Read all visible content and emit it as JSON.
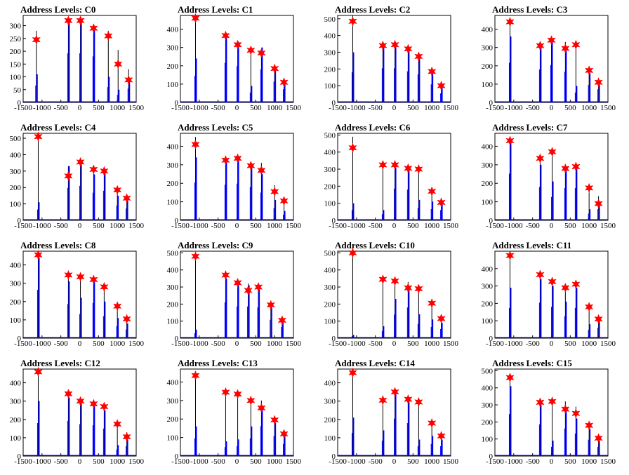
{
  "figure": {
    "colors": {
      "histogram": "#0000ff",
      "black_line": "#000000",
      "marker": "#ff0000",
      "frame": "#000000",
      "background": "#ffffff"
    },
    "shared_xlim": [
      -1500,
      1500
    ],
    "shared_x_ticks": [
      "-1500",
      "-1000",
      "-500",
      "0",
      "500",
      "1000",
      "1500"
    ]
  },
  "chart_data": [
    {
      "type": "bar",
      "title": "Address Levels: C0",
      "xlim": [
        -1500,
        1500
      ],
      "ylim": [
        0,
        340
      ],
      "y_ticks": [
        0,
        50,
        100,
        150,
        200,
        250,
        300
      ],
      "peaks_x": [
        -1150,
        -300,
        20,
        370,
        760,
        1020,
        1300
      ],
      "markers": [
        245,
        320,
        320,
        290,
        260,
        150,
        88
      ],
      "bar_heights": [
        110,
        320,
        320,
        300,
        100,
        50,
        90
      ],
      "line_heights": [
        280,
        330,
        330,
        300,
        280,
        205,
        130
      ]
    },
    {
      "type": "bar",
      "title": "Address Levels: C1",
      "xlim": [
        -1500,
        1500
      ],
      "ylim": [
        0,
        475
      ],
      "y_ticks": [
        0,
        100,
        200,
        300,
        400
      ],
      "peaks_x": [
        -1100,
        -300,
        20,
        370,
        650,
        1000,
        1250
      ],
      "markers": [
        460,
        365,
        315,
        285,
        270,
        185,
        110
      ],
      "bar_heights": [
        240,
        360,
        330,
        90,
        300,
        190,
        120
      ],
      "line_heights": [
        460,
        350,
        300,
        300,
        260,
        180,
        110
      ]
    },
    {
      "type": "bar",
      "title": "Address Levels: C2",
      "xlim": [
        -1500,
        1500
      ],
      "ylim": [
        0,
        520
      ],
      "y_ticks": [
        0,
        100,
        200,
        300,
        400,
        500
      ],
      "peaks_x": [
        -1100,
        -300,
        20,
        370,
        650,
        1000,
        1250
      ],
      "markers": [
        485,
        340,
        345,
        320,
        275,
        185,
        100
      ],
      "bar_heights": [
        300,
        340,
        340,
        310,
        280,
        180,
        90
      ],
      "line_heights": [
        520,
        330,
        350,
        320,
        270,
        180,
        120
      ]
    },
    {
      "type": "bar",
      "title": "Address Levels: C3",
      "xlim": [
        -1500,
        1500
      ],
      "ylim": [
        0,
        475
      ],
      "y_ticks": [
        0,
        100,
        200,
        300,
        400
      ],
      "peaks_x": [
        -1100,
        -300,
        0,
        370,
        650,
        1000,
        1250
      ],
      "markers": [
        440,
        310,
        340,
        295,
        315,
        175,
        110
      ],
      "bar_heights": [
        360,
        300,
        340,
        280,
        90,
        160,
        120
      ],
      "line_heights": [
        440,
        310,
        340,
        330,
        320,
        170,
        120
      ]
    },
    {
      "type": "bar",
      "title": "Address Levels: C4",
      "xlim": [
        -1500,
        1500
      ],
      "ylim": [
        0,
        530
      ],
      "y_ticks": [
        0,
        100,
        200,
        300,
        400,
        500
      ],
      "peaks_x": [
        -1100,
        -300,
        20,
        370,
        650,
        1000,
        1250
      ],
      "markers": [
        510,
        270,
        355,
        310,
        300,
        185,
        135
      ],
      "bar_heights": [
        110,
        330,
        350,
        280,
        300,
        150,
        120
      ],
      "line_heights": [
        520,
        330,
        360,
        300,
        300,
        200,
        140
      ]
    },
    {
      "type": "bar",
      "title": "Address Levels: C5",
      "xlim": [
        -1500,
        1500
      ],
      "ylim": [
        0,
        470
      ],
      "y_ticks": [
        0,
        100,
        200,
        300,
        400
      ],
      "peaks_x": [
        -1100,
        -300,
        20,
        370,
        650,
        1000,
        1250
      ],
      "markers": [
        410,
        325,
        335,
        295,
        270,
        155,
        105
      ],
      "bar_heights": [
        340,
        320,
        330,
        300,
        250,
        110,
        50
      ],
      "line_heights": [
        450,
        330,
        340,
        300,
        310,
        190,
        110
      ]
    },
    {
      "type": "bar",
      "title": "Address Levels: C6",
      "xlim": [
        -1500,
        1500
      ],
      "ylim": [
        0,
        510
      ],
      "y_ticks": [
        0,
        100,
        200,
        300,
        400,
        500
      ],
      "peaks_x": [
        -1100,
        -300,
        20,
        370,
        650,
        1000,
        1250
      ],
      "markers": [
        425,
        325,
        325,
        305,
        300,
        170,
        105
      ],
      "bar_heights": [
        100,
        60,
        310,
        300,
        120,
        110,
        100
      ],
      "line_heights": [
        490,
        320,
        320,
        300,
        300,
        170,
        120
      ]
    },
    {
      "type": "bar",
      "title": "Address Levels: C7",
      "xlim": [
        -1500,
        1500
      ],
      "ylim": [
        0,
        470
      ],
      "y_ticks": [
        0,
        100,
        200,
        300,
        400
      ],
      "peaks_x": [
        -1100,
        -300,
        20,
        370,
        650,
        1000,
        1250
      ],
      "markers": [
        430,
        335,
        370,
        280,
        290,
        175,
        90
      ],
      "bar_heights": [
        420,
        300,
        210,
        290,
        290,
        60,
        100
      ],
      "line_heights": [
        440,
        350,
        380,
        300,
        300,
        150,
        130
      ]
    },
    {
      "type": "bar",
      "title": "Address Levels: C8",
      "xlim": [
        -1500,
        1500
      ],
      "ylim": [
        0,
        475
      ],
      "y_ticks": [
        0,
        100,
        200,
        300,
        400
      ],
      "peaks_x": [
        -1100,
        -300,
        20,
        370,
        650,
        1000,
        1250
      ],
      "markers": [
        455,
        345,
        335,
        320,
        280,
        175,
        105
      ],
      "bar_heights": [
        440,
        310,
        220,
        320,
        200,
        110,
        80
      ],
      "line_heights": [
        460,
        350,
        330,
        320,
        290,
        170,
        110
      ]
    },
    {
      "type": "bar",
      "title": "Address Levels: C9",
      "xlim": [
        -1500,
        1500
      ],
      "ylim": [
        0,
        510
      ],
      "y_ticks": [
        0,
        100,
        200,
        300,
        400,
        500
      ],
      "peaks_x": [
        -1100,
        -300,
        20,
        300,
        570,
        900,
        1200
      ],
      "markers": [
        480,
        370,
        325,
        280,
        300,
        195,
        105
      ],
      "bar_heights": [
        50,
        350,
        310,
        310,
        300,
        180,
        110
      ],
      "line_heights": [
        480,
        350,
        320,
        320,
        320,
        190,
        130
      ]
    },
    {
      "type": "bar",
      "title": "Address Levels: C10",
      "xlim": [
        -1500,
        1500
      ],
      "ylim": [
        0,
        510
      ],
      "y_ticks": [
        0,
        100,
        200,
        300,
        400,
        500
      ],
      "peaks_x": [
        -1100,
        -300,
        20,
        370,
        650,
        1000,
        1250
      ],
      "markers": [
        500,
        345,
        335,
        295,
        290,
        205,
        115
      ],
      "bar_heights": [
        20,
        70,
        230,
        300,
        140,
        110,
        90
      ],
      "line_heights": [
        490,
        340,
        340,
        330,
        300,
        190,
        120
      ]
    },
    {
      "type": "bar",
      "title": "Address Levels: C11",
      "xlim": [
        -1500,
        1500
      ],
      "ylim": [
        0,
        500
      ],
      "y_ticks": [
        0,
        100,
        200,
        300,
        400
      ],
      "peaks_x": [
        -1100,
        -300,
        20,
        370,
        650,
        1000,
        1250
      ],
      "markers": [
        475,
        365,
        325,
        290,
        310,
        180,
        110
      ],
      "bar_heights": [
        290,
        340,
        300,
        210,
        290,
        80,
        100
      ],
      "line_heights": [
        480,
        350,
        330,
        300,
        300,
        170,
        120
      ]
    },
    {
      "type": "bar",
      "title": "Address Levels: C12",
      "xlim": [
        -1500,
        1500
      ],
      "ylim": [
        0,
        475
      ],
      "y_ticks": [
        0,
        100,
        200,
        300,
        400
      ],
      "peaks_x": [
        -1100,
        -300,
        20,
        370,
        650,
        1000,
        1250
      ],
      "markers": [
        460,
        340,
        300,
        285,
        270,
        175,
        105
      ],
      "bar_heights": [
        300,
        320,
        290,
        280,
        250,
        60,
        90
      ],
      "line_heights": [
        460,
        350,
        310,
        290,
        290,
        170,
        130
      ]
    },
    {
      "type": "bar",
      "title": "Address Levels: C13",
      "xlim": [
        -1500,
        1500
      ],
      "ylim": [
        0,
        470
      ],
      "y_ticks": [
        0,
        100,
        200,
        300,
        400
      ],
      "peaks_x": [
        -1100,
        -300,
        20,
        370,
        650,
        1000,
        1250
      ],
      "markers": [
        435,
        345,
        335,
        300,
        260,
        195,
        120
      ],
      "bar_heights": [
        160,
        80,
        90,
        160,
        270,
        180,
        110
      ],
      "line_heights": [
        440,
        340,
        340,
        310,
        300,
        180,
        120
      ]
    },
    {
      "type": "bar",
      "title": "Address Levels: C14",
      "xlim": [
        -1500,
        1500
      ],
      "ylim": [
        0,
        475
      ],
      "y_ticks": [
        0,
        100,
        200,
        300,
        400
      ],
      "peaks_x": [
        -1100,
        -300,
        20,
        370,
        650,
        1000,
        1250
      ],
      "markers": [
        455,
        305,
        350,
        310,
        295,
        180,
        110
      ],
      "bar_heights": [
        210,
        140,
        340,
        300,
        90,
        110,
        90
      ],
      "line_heights": [
        460,
        330,
        350,
        310,
        290,
        180,
        120
      ]
    },
    {
      "type": "bar",
      "title": "Address Levels: C15",
      "xlim": [
        -1500,
        1500
      ],
      "ylim": [
        0,
        510
      ],
      "y_ticks": [
        0,
        100,
        200,
        300,
        400,
        500
      ],
      "peaks_x": [
        -1100,
        -300,
        20,
        370,
        650,
        1000,
        1250
      ],
      "markers": [
        460,
        315,
        320,
        275,
        250,
        180,
        105
      ],
      "bar_heights": [
        410,
        310,
        90,
        270,
        220,
        160,
        90
      ],
      "line_heights": [
        470,
        320,
        320,
        320,
        290,
        170,
        110
      ]
    }
  ]
}
